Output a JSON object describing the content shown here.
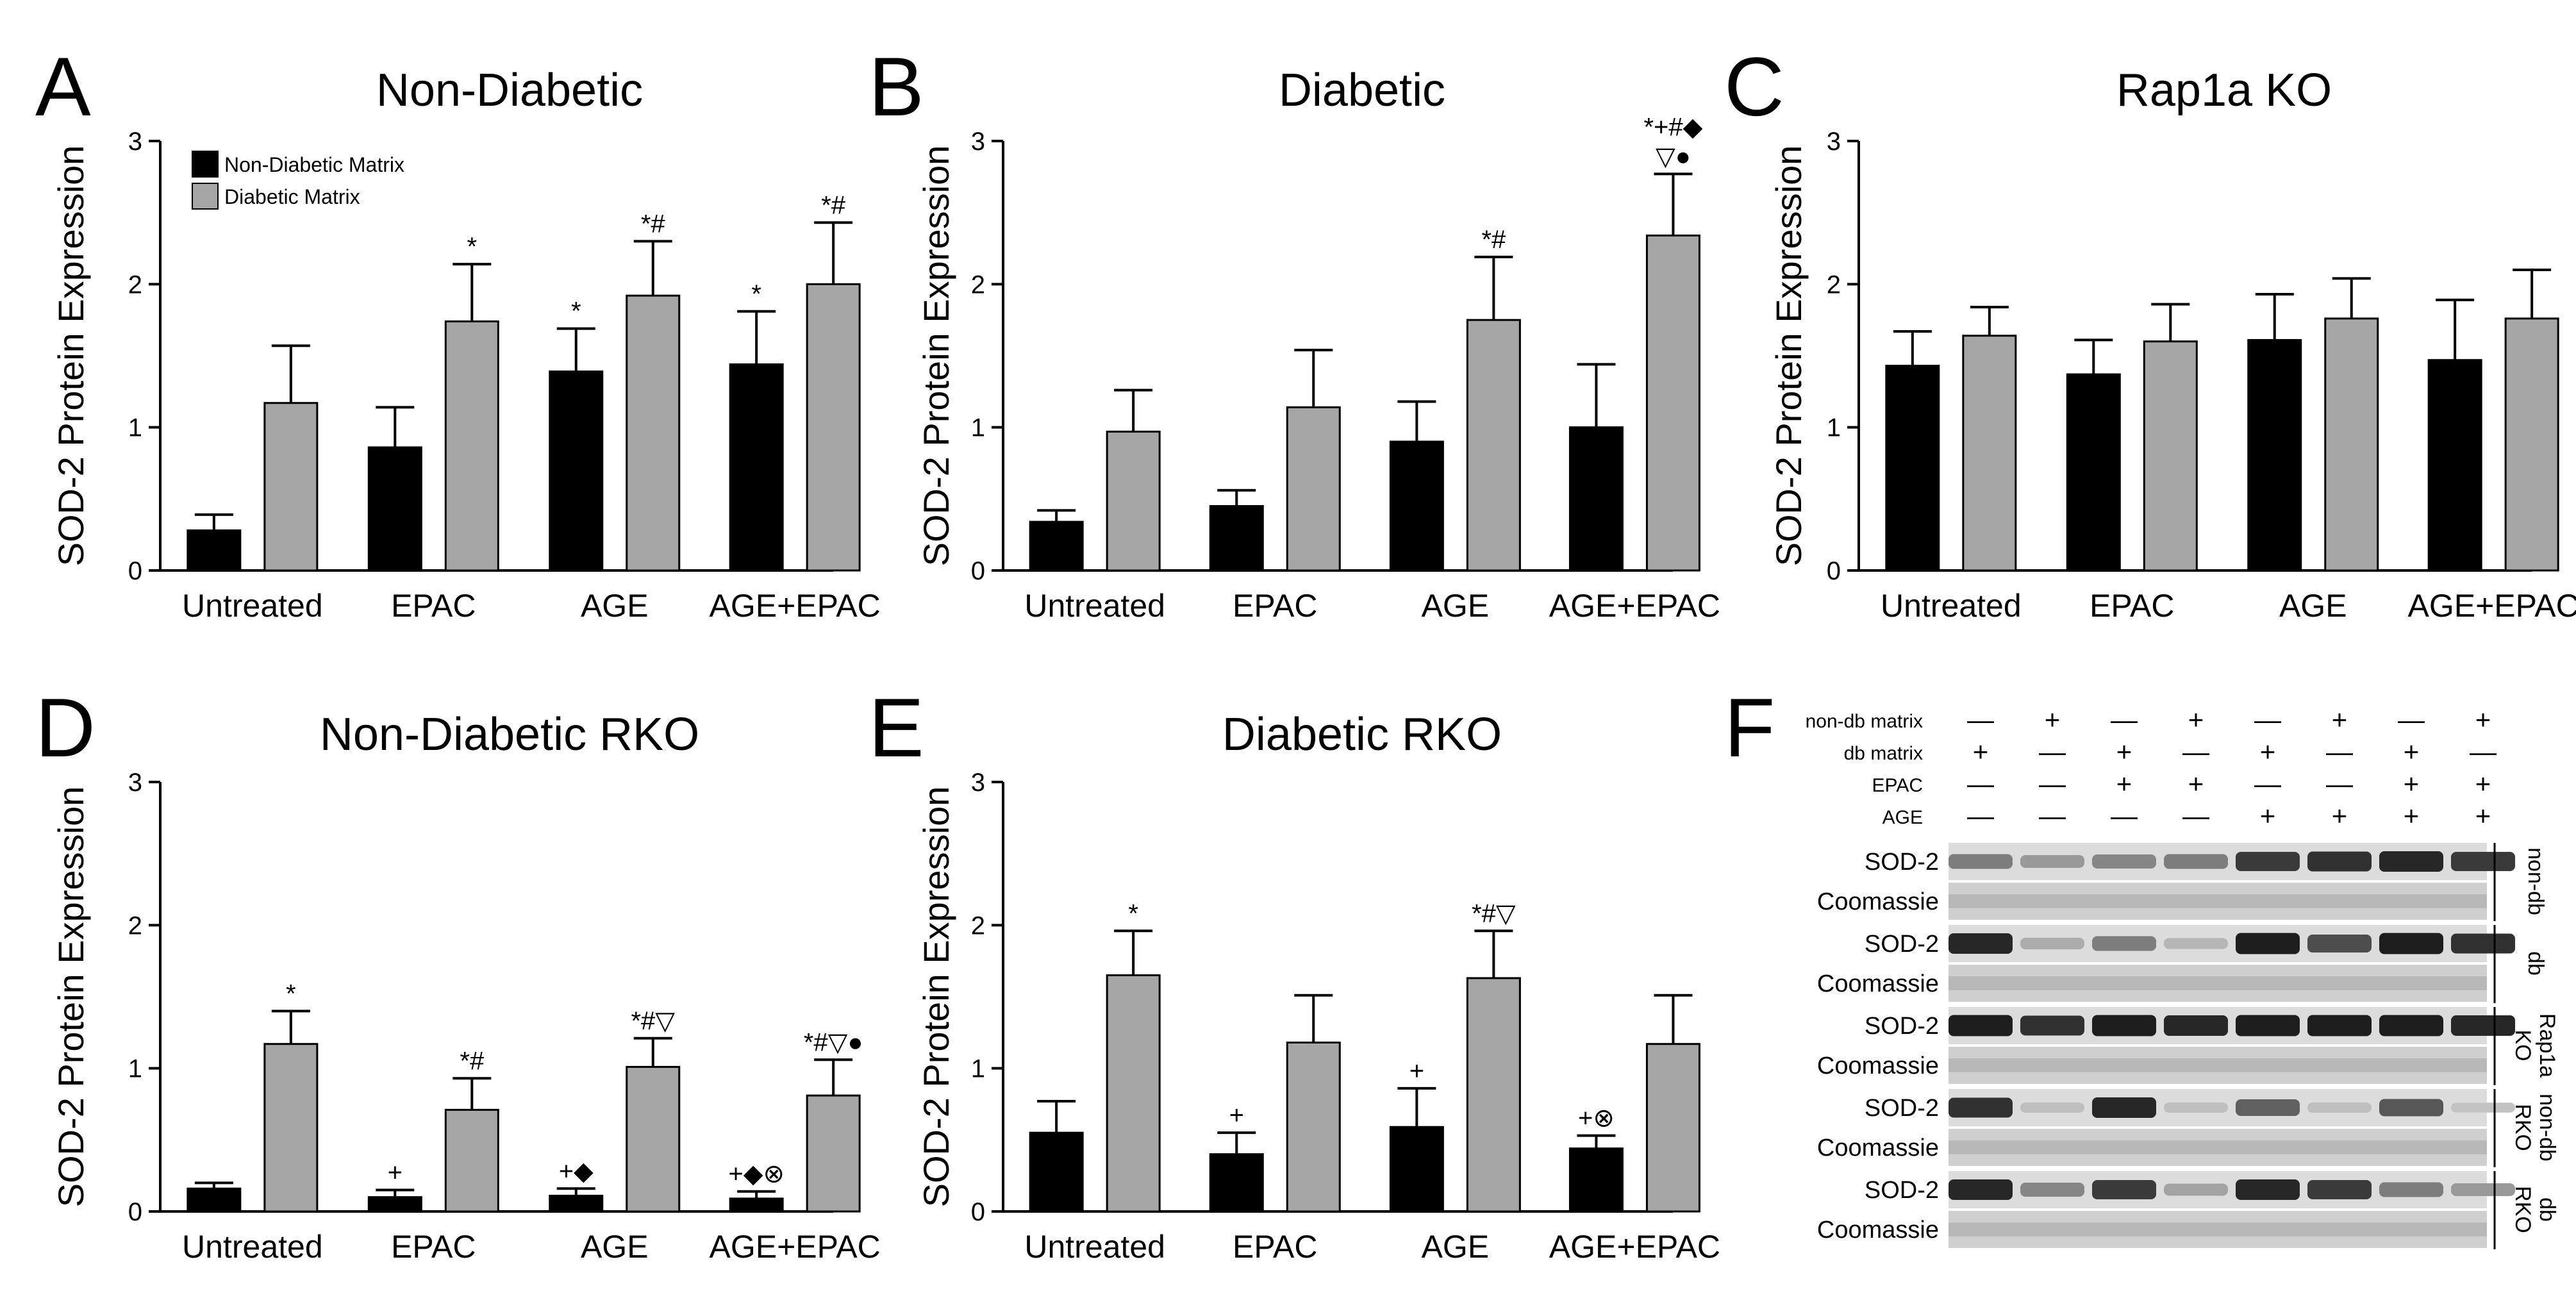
{
  "colors": {
    "non_diabetic_matrix": "#000000",
    "diabetic_matrix": "#a6a6a6"
  },
  "legend": {
    "entries": [
      "Non-Diabetic Matrix",
      "Diabetic Matrix"
    ],
    "placement": "top-left of panel A"
  },
  "chart_data": [
    {
      "panel": "A",
      "type": "bar",
      "title": "Non-Diabetic",
      "ylabel": "SOD-2 Protein Expression",
      "ylim": [
        0,
        3
      ],
      "yticks": [
        "0",
        "1",
        "2",
        "3"
      ],
      "categories": [
        "Untreated",
        "EPAC",
        "AGE",
        "AGE+EPAC"
      ],
      "series": [
        {
          "name": "Non-Diabetic Matrix",
          "values": [
            0.28,
            0.86,
            1.39,
            1.44
          ],
          "errors": [
            0.11,
            0.28,
            0.3,
            0.37
          ],
          "annotations": [
            "",
            "",
            "*",
            "*"
          ]
        },
        {
          "name": "Diabetic Matrix",
          "values": [
            1.17,
            1.74,
            1.92,
            2.0
          ],
          "errors": [
            0.4,
            0.4,
            0.38,
            0.43
          ],
          "annotations": [
            "",
            "*",
            "*#",
            "*#"
          ]
        }
      ]
    },
    {
      "panel": "B",
      "type": "bar",
      "title": "Diabetic",
      "ylabel": "SOD-2 Protein Expression",
      "ylim": [
        0,
        3
      ],
      "yticks": [
        "0",
        "1",
        "2",
        "3"
      ],
      "categories": [
        "Untreated",
        "EPAC",
        "AGE",
        "AGE+EPAC"
      ],
      "series": [
        {
          "name": "Non-Diabetic Matrix",
          "values": [
            0.34,
            0.45,
            0.9,
            1.0
          ],
          "errors": [
            0.08,
            0.11,
            0.28,
            0.44
          ],
          "annotations": [
            "",
            "",
            "",
            ""
          ]
        },
        {
          "name": "Diabetic Matrix",
          "values": [
            0.97,
            1.14,
            1.75,
            2.34
          ],
          "errors": [
            0.29,
            0.4,
            0.44,
            0.43
          ],
          "annotations": [
            "",
            "",
            "*#",
            "*+#◆\n▽●"
          ]
        }
      ]
    },
    {
      "panel": "C",
      "type": "bar",
      "title": "Rap1a KO",
      "ylabel": "SOD-2 Protein Expression",
      "ylim": [
        0,
        3
      ],
      "yticks": [
        "0",
        "1",
        "2",
        "3"
      ],
      "categories": [
        "Untreated",
        "EPAC",
        "AGE",
        "AGE+EPAC"
      ],
      "series": [
        {
          "name": "Non-Diabetic Matrix",
          "values": [
            1.43,
            1.37,
            1.61,
            1.47
          ],
          "errors": [
            0.24,
            0.24,
            0.32,
            0.42
          ],
          "annotations": [
            "",
            "",
            "",
            ""
          ]
        },
        {
          "name": "Diabetic Matrix",
          "values": [
            1.64,
            1.6,
            1.76,
            1.76
          ],
          "errors": [
            0.2,
            0.26,
            0.28,
            0.34
          ],
          "annotations": [
            "",
            "",
            "",
            ""
          ]
        }
      ]
    },
    {
      "panel": "D",
      "type": "bar",
      "title": "Non-Diabetic RKO",
      "ylabel": "SOD-2 Protein Expression",
      "ylim": [
        0,
        3
      ],
      "yticks": [
        "0",
        "1",
        "2",
        "3"
      ],
      "categories": [
        "Untreated",
        "EPAC",
        "AGE",
        "AGE+EPAC"
      ],
      "series": [
        {
          "name": "Non-Diabetic Matrix",
          "values": [
            0.16,
            0.1,
            0.11,
            0.09
          ],
          "errors": [
            0.04,
            0.05,
            0.05,
            0.05
          ],
          "annotations": [
            "",
            "+",
            "+◆",
            "+◆⊗"
          ]
        },
        {
          "name": "Diabetic Matrix",
          "values": [
            1.17,
            0.71,
            1.01,
            0.81
          ],
          "errors": [
            0.23,
            0.22,
            0.2,
            0.25
          ],
          "annotations": [
            "*",
            "*#",
            "*#▽",
            "*#▽●"
          ]
        }
      ]
    },
    {
      "panel": "E",
      "type": "bar",
      "title": "Diabetic RKO",
      "ylabel": "SOD-2 Protein Expression",
      "ylim": [
        0,
        3
      ],
      "yticks": [
        "0",
        "1",
        "2",
        "3"
      ],
      "categories": [
        "Untreated",
        "EPAC",
        "AGE",
        "AGE+EPAC"
      ],
      "series": [
        {
          "name": "Non-Diabetic Matrix",
          "values": [
            0.55,
            0.4,
            0.59,
            0.44
          ],
          "errors": [
            0.22,
            0.15,
            0.27,
            0.09
          ],
          "annotations": [
            "",
            "+",
            "+",
            "+⊗"
          ]
        },
        {
          "name": "Diabetic Matrix",
          "values": [
            1.65,
            1.18,
            1.63,
            1.17
          ],
          "errors": [
            0.31,
            0.33,
            0.33,
            0.34
          ],
          "annotations": [
            "*",
            "",
            "*#▽",
            ""
          ]
        }
      ]
    }
  ],
  "blot": {
    "panel": "F",
    "conditions": [
      {
        "label": "non-db matrix",
        "values": [
          "—",
          "+",
          "—",
          "+",
          "—",
          "+",
          "—",
          "+"
        ]
      },
      {
        "label": "db matrix",
        "values": [
          "+",
          "—",
          "+",
          "—",
          "+",
          "—",
          "+",
          "—"
        ]
      },
      {
        "label": "EPAC",
        "values": [
          "—",
          "—",
          "+",
          "+",
          "—",
          "—",
          "+",
          "+"
        ]
      },
      {
        "label": "AGE",
        "values": [
          "—",
          "—",
          "—",
          "—",
          "+",
          "+",
          "+",
          "+"
        ]
      }
    ],
    "groups": [
      {
        "label": "non-db",
        "sod2_label": "SOD-2",
        "coomassie_label": "Coomassie",
        "band_intensity": [
          0.45,
          0.3,
          0.4,
          0.45,
          0.8,
          0.85,
          0.9,
          0.8
        ]
      },
      {
        "label": "db",
        "sod2_label": "SOD-2",
        "coomassie_label": "Coomassie",
        "band_intensity": [
          0.9,
          0.2,
          0.45,
          0.15,
          0.95,
          0.7,
          0.95,
          0.85
        ]
      },
      {
        "label": "Rap1a KO",
        "sod2_label": "SOD-2",
        "coomassie_label": "Coomassie",
        "band_intensity": [
          0.95,
          0.85,
          0.95,
          0.9,
          0.95,
          0.95,
          0.95,
          0.9
        ]
      },
      {
        "label": "non-db RKO",
        "sod2_label": "SOD-2",
        "coomassie_label": "Coomassie",
        "band_intensity": [
          0.85,
          0.1,
          0.9,
          0.1,
          0.6,
          0.1,
          0.65,
          0.08
        ]
      },
      {
        "label": "db RKO",
        "sod2_label": "SOD-2",
        "coomassie_label": "Coomassie",
        "band_intensity": [
          0.9,
          0.4,
          0.8,
          0.25,
          0.9,
          0.8,
          0.45,
          0.3
        ]
      }
    ]
  }
}
